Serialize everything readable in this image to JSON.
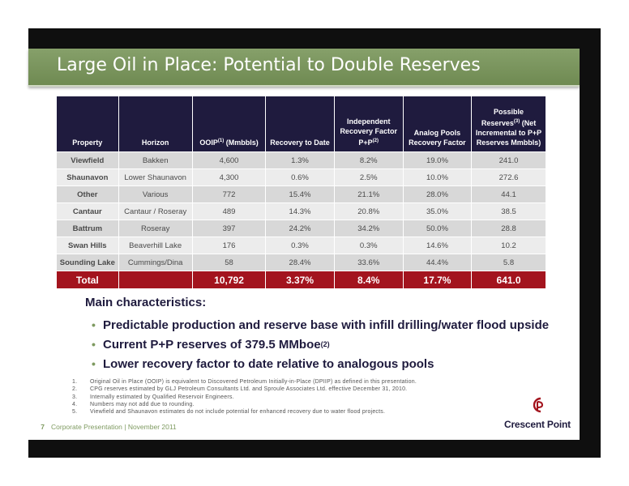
{
  "slide": {
    "title": "Large Oil in Place: Potential to Double Reserves"
  },
  "table": {
    "headers": [
      {
        "text": "Property",
        "sup": ""
      },
      {
        "text": "Horizon",
        "sup": ""
      },
      {
        "text": "OOIP",
        "sup": "(1)",
        "after": " (Mmbbls)"
      },
      {
        "text": "Recovery to Date",
        "sup": ""
      },
      {
        "text": "Independent Recovery Factor P+P",
        "sup": "(2)"
      },
      {
        "text": "Analog Pools Recovery Factor",
        "sup": ""
      },
      {
        "text": "Possible Reserves",
        "sup": "(3)",
        "after": " (Net Incremental to P+P Reserves Mmbbls)"
      }
    ],
    "rows": [
      [
        "Viewfield",
        "Bakken",
        "4,600",
        "1.3%",
        "8.2%",
        "19.0%",
        "241.0"
      ],
      [
        "Shaunavon",
        "Lower Shaunavon",
        "4,300",
        "0.6%",
        "2.5%",
        "10.0%",
        "272.6"
      ],
      [
        "Other",
        "Various",
        "772",
        "15.4%",
        "21.1%",
        "28.0%",
        "44.1"
      ],
      [
        "Cantaur",
        "Cantaur / Roseray",
        "489",
        "14.3%",
        "20.8%",
        "35.0%",
        "38.5"
      ],
      [
        "Battrum",
        "Roseray",
        "397",
        "24.2%",
        "34.2%",
        "50.0%",
        "28.8"
      ],
      [
        "Swan Hills",
        "Beaverhill Lake",
        "176",
        "0.3%",
        "0.3%",
        "14.6%",
        "10.2"
      ],
      [
        "Sounding Lake",
        "Cummings/Dina",
        "58",
        "28.4%",
        "33.6%",
        "44.4%",
        "5.8"
      ]
    ],
    "total": [
      "Total",
      "",
      "10,792",
      "3.37%",
      "8.4%",
      "17.7%",
      "641.0"
    ]
  },
  "characteristics": {
    "heading": "Main characteristics:",
    "bullets": [
      {
        "text": "Predictable production and reserve base with infill drilling/water flood upside",
        "sup": ""
      },
      {
        "text": "Current P+P reserves of 379.5 MMboe",
        "sup": "(2)"
      },
      {
        "text": "Lower recovery factor to date relative to analogous pools",
        "sup": ""
      }
    ]
  },
  "notes": [
    {
      "num": "1.",
      "text": "Original Oil in Place (OOIP) is equivalent to Discovered Petroleum Initially-in-Place (DPIIP) as defined in this presentation."
    },
    {
      "num": "2.",
      "text": "CPG reserves estimated by GLJ Petroleum Consultants Ltd. and Sproule Associates Ltd. effective December 31, 2010."
    },
    {
      "num": "3.",
      "text": "Internally estimated by Qualified Reservoir Engineers."
    },
    {
      "num": "4.",
      "text": "Numbers may not add due to rounding."
    },
    {
      "num": "5.",
      "text": "Viewfield and Shaunavon estimates do not include potential for enhanced recovery due to water flood projects."
    }
  ],
  "footer": {
    "page": "7",
    "text": "Corporate Presentation | November 2011",
    "company": "Crescent Point"
  },
  "colors": {
    "header_navy": "#1f1b3e",
    "total_red": "#a3141e",
    "title_green": "#7e9a60"
  }
}
